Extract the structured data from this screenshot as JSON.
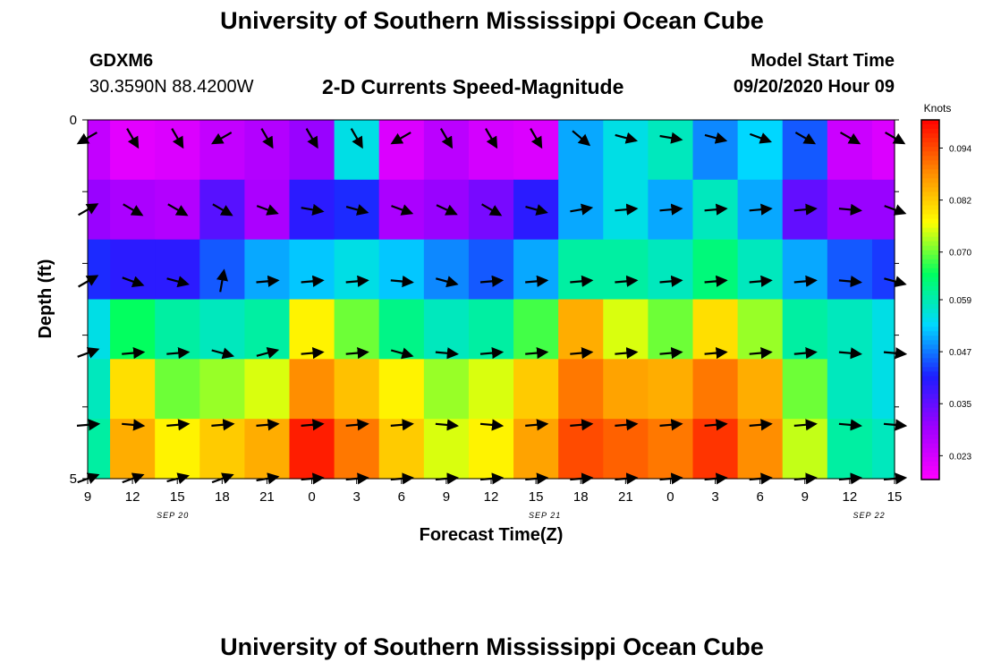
{
  "page": {
    "title_top": "University of Southern Mississippi Ocean Cube",
    "title_bottom": "University of Southern Mississippi Ocean Cube",
    "station": "GDXM6",
    "location": "30.3590N 88.4200W",
    "subtitle": "2-D Currents Speed-Magnitude",
    "model_start_label": "Model Start Time",
    "model_start_value": "09/20/2020 Hour 09"
  },
  "chart_data": {
    "type": "heatmap",
    "title": "2-D Currents Speed-Magnitude",
    "xlabel": "Forecast Time(Z)",
    "ylabel": "Depth (ft)",
    "y_tick_labels": [
      "0",
      "5"
    ],
    "ylim": [
      0,
      5
    ],
    "x_tick_labels": [
      "9",
      "12",
      "15",
      "18",
      "21",
      "0",
      "3",
      "6",
      "9",
      "12",
      "15",
      "18",
      "21",
      "0",
      "3",
      "6",
      "9",
      "12",
      "15"
    ],
    "date_labels": [
      "SEP 20",
      "SEP 21",
      "SEP 22"
    ],
    "colorbar": {
      "units": "Knots",
      "tick_labels": [
        "0.094",
        "0.082",
        "0.070",
        "0.059",
        "0.047",
        "0.035",
        "0.023"
      ],
      "tick_values": [
        0.094,
        0.082,
        0.07,
        0.059,
        0.047,
        0.035,
        0.023
      ],
      "range": [
        0.0175,
        0.1005
      ],
      "colors": [
        "#ff00ff",
        "#a000ff",
        "#1e1eff",
        "#00d8ff",
        "#00ff60",
        "#ffff00",
        "#ff8800",
        "#ff0000"
      ]
    },
    "depth_layers_ft": [
      0.25,
      1.25,
      2.25,
      3.25,
      4.25,
      5.0
    ],
    "time_hours": [
      0,
      3,
      6,
      9,
      12,
      15,
      18,
      21,
      24,
      27,
      30,
      33,
      36,
      39,
      42,
      45,
      48,
      51,
      54
    ],
    "speed_knots": [
      [
        0.025,
        0.021,
        0.022,
        0.025,
        0.027,
        0.03,
        0.055,
        0.022,
        0.026,
        0.023,
        0.022,
        0.05,
        0.055,
        0.058,
        0.048,
        0.053,
        0.045,
        0.024,
        0.022
      ],
      [
        0.03,
        0.028,
        0.027,
        0.036,
        0.028,
        0.04,
        0.042,
        0.028,
        0.03,
        0.033,
        0.04,
        0.05,
        0.055,
        0.05,
        0.058,
        0.05,
        0.035,
        0.03,
        0.03
      ],
      [
        0.042,
        0.04,
        0.04,
        0.045,
        0.05,
        0.052,
        0.055,
        0.052,
        0.048,
        0.045,
        0.05,
        0.06,
        0.06,
        0.058,
        0.063,
        0.058,
        0.05,
        0.045,
        0.043
      ],
      [
        0.055,
        0.065,
        0.06,
        0.058,
        0.06,
        0.078,
        0.07,
        0.062,
        0.058,
        0.06,
        0.068,
        0.085,
        0.075,
        0.07,
        0.08,
        0.072,
        0.06,
        0.058,
        0.055
      ],
      [
        0.058,
        0.08,
        0.07,
        0.072,
        0.075,
        0.088,
        0.083,
        0.078,
        0.072,
        0.075,
        0.082,
        0.09,
        0.086,
        0.085,
        0.09,
        0.085,
        0.07,
        0.058,
        0.055
      ],
      [
        0.06,
        0.085,
        0.078,
        0.082,
        0.085,
        0.098,
        0.09,
        0.082,
        0.075,
        0.078,
        0.086,
        0.094,
        0.092,
        0.09,
        0.096,
        0.088,
        0.074,
        0.06,
        0.058
      ]
    ],
    "direction_deg_from_east": [
      [
        210,
        300,
        300,
        210,
        300,
        300,
        300,
        210,
        300,
        300,
        300,
        320,
        345,
        350,
        345,
        340,
        330,
        330,
        330
      ],
      [
        30,
        330,
        330,
        330,
        340,
        350,
        345,
        340,
        335,
        330,
        345,
        10,
        5,
        5,
        5,
        5,
        5,
        355,
        340
      ],
      [
        30,
        340,
        345,
        80,
        5,
        5,
        5,
        355,
        345,
        5,
        5,
        5,
        5,
        5,
        5,
        5,
        5,
        355,
        345
      ],
      [
        20,
        5,
        5,
        345,
        15,
        5,
        5,
        345,
        355,
        5,
        5,
        5,
        5,
        5,
        5,
        5,
        5,
        355,
        355
      ],
      [
        5,
        355,
        5,
        5,
        5,
        5,
        5,
        5,
        355,
        355,
        5,
        5,
        5,
        5,
        5,
        5,
        5,
        355,
        355
      ],
      [
        20,
        20,
        15,
        20,
        10,
        5,
        5,
        5,
        5,
        5,
        5,
        5,
        5,
        5,
        5,
        5,
        5,
        5,
        5
      ]
    ]
  }
}
